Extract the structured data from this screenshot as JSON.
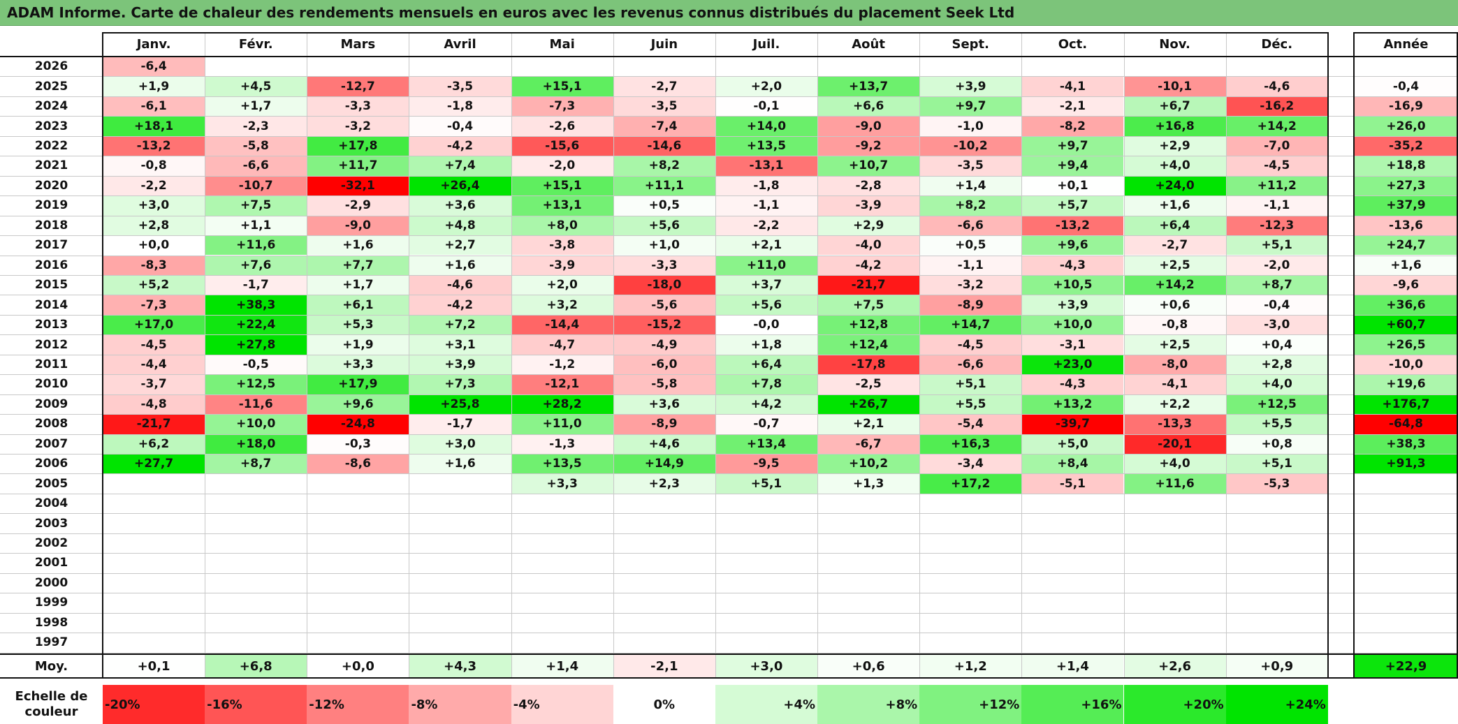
{
  "title": "ADAM Informe. Carte de chaleur des rendements mensuels en euros avec les revenus connus distribués du placement Seek Ltd",
  "colors": {
    "title_bg": "#7cc47a",
    "neg_max": "#ff0000",
    "zero": "#ffffff",
    "pos_max": "#00e000"
  },
  "chart_data": {
    "type": "heatmap",
    "columns": [
      "Janv.",
      "Févr.",
      "Mars",
      "Avril",
      "Mai",
      "Juin",
      "Juil.",
      "Août",
      "Sept.",
      "Oct.",
      "Nov.",
      "Déc."
    ],
    "year_column_label": "Année",
    "rows": [
      {
        "year": "2026",
        "months": [
          "-6,4",
          "",
          "",
          "",
          "",
          "",
          "",
          "",
          "",
          "",
          "",
          ""
        ],
        "annual": ""
      },
      {
        "year": "2025",
        "months": [
          "+1,9",
          "+4,5",
          "-12,7",
          "-3,5",
          "+15,1",
          "-2,7",
          "+2,0",
          "+13,7",
          "+3,9",
          "-4,1",
          "-10,1",
          "-4,6"
        ],
        "annual": "-0,4"
      },
      {
        "year": "2024",
        "months": [
          "-6,1",
          "+1,7",
          "-3,3",
          "-1,8",
          "-7,3",
          "-3,5",
          "-0,1",
          "+6,6",
          "+9,7",
          "-2,1",
          "+6,7",
          "-16,2"
        ],
        "annual": "-16,9"
      },
      {
        "year": "2023",
        "months": [
          "+18,1",
          "-2,3",
          "-3,2",
          "-0,4",
          "-2,6",
          "-7,4",
          "+14,0",
          "-9,0",
          "-1,0",
          "-8,2",
          "+16,8",
          "+14,2"
        ],
        "annual": "+26,0"
      },
      {
        "year": "2022",
        "months": [
          "-13,2",
          "-5,8",
          "+17,8",
          "-4,2",
          "-15,6",
          "-14,6",
          "+13,5",
          "-9,2",
          "-10,2",
          "+9,7",
          "+2,9",
          "-7,0"
        ],
        "annual": "-35,2"
      },
      {
        "year": "2021",
        "months": [
          "-0,8",
          "-6,6",
          "+11,7",
          "+7,4",
          "-2,0",
          "+8,2",
          "-13,1",
          "+10,7",
          "-3,5",
          "+9,4",
          "+4,0",
          "-4,5"
        ],
        "annual": "+18,8"
      },
      {
        "year": "2020",
        "months": [
          "-2,2",
          "-10,7",
          "-32,1",
          "+26,4",
          "+15,1",
          "+11,1",
          "-1,8",
          "-2,8",
          "+1,4",
          "+0,1",
          "+24,0",
          "+11,2"
        ],
        "annual": "+27,3"
      },
      {
        "year": "2019",
        "months": [
          "+3,0",
          "+7,5",
          "-2,9",
          "+3,6",
          "+13,1",
          "+0,5",
          "-1,1",
          "-3,9",
          "+8,2",
          "+5,7",
          "+1,6",
          "-1,1"
        ],
        "annual": "+37,9"
      },
      {
        "year": "2018",
        "months": [
          "+2,8",
          "+1,1",
          "-9,0",
          "+4,8",
          "+8,0",
          "+5,6",
          "-2,2",
          "+2,9",
          "-6,6",
          "-13,2",
          "+6,4",
          "-12,3"
        ],
        "annual": "-13,6"
      },
      {
        "year": "2017",
        "months": [
          "+0,0",
          "+11,6",
          "+1,6",
          "+2,7",
          "-3,8",
          "+1,0",
          "+2,1",
          "-4,0",
          "+0,5",
          "+9,6",
          "-2,7",
          "+5,1"
        ],
        "annual": "+24,7"
      },
      {
        "year": "2016",
        "months": [
          "-8,3",
          "+7,6",
          "+7,7",
          "+1,6",
          "-3,9",
          "-3,3",
          "+11,0",
          "-4,2",
          "-1,1",
          "-4,3",
          "+2,5",
          "-2,0"
        ],
        "annual": "+1,6"
      },
      {
        "year": "2015",
        "months": [
          "+5,2",
          "-1,7",
          "+1,7",
          "-4,6",
          "+2,0",
          "-18,0",
          "+3,7",
          "-21,7",
          "-3,2",
          "+10,5",
          "+14,2",
          "+8,7"
        ],
        "annual": "-9,6"
      },
      {
        "year": "2014",
        "months": [
          "-7,3",
          "+38,3",
          "+6,1",
          "-4,2",
          "+3,2",
          "-5,6",
          "+5,6",
          "+7,5",
          "-8,9",
          "+3,9",
          "+0,6",
          "-0,4"
        ],
        "annual": "+36,6"
      },
      {
        "year": "2013",
        "months": [
          "+17,0",
          "+22,4",
          "+5,3",
          "+7,2",
          "-14,4",
          "-15,2",
          "-0,0",
          "+12,8",
          "+14,7",
          "+10,0",
          "-0,8",
          "-3,0"
        ],
        "annual": "+60,7"
      },
      {
        "year": "2012",
        "months": [
          "-4,5",
          "+27,8",
          "+1,9",
          "+3,1",
          "-4,7",
          "-4,9",
          "+1,8",
          "+12,4",
          "-4,5",
          "-3,1",
          "+2,5",
          "+0,4"
        ],
        "annual": "+26,5"
      },
      {
        "year": "2011",
        "months": [
          "-4,4",
          "-0,5",
          "+3,3",
          "+3,9",
          "-1,2",
          "-6,0",
          "+6,4",
          "-17,8",
          "-6,6",
          "+23,0",
          "-8,0",
          "+2,8"
        ],
        "annual": "-10,0"
      },
      {
        "year": "2010",
        "months": [
          "-3,7",
          "+12,5",
          "+17,9",
          "+7,3",
          "-12,1",
          "-5,8",
          "+7,8",
          "-2,5",
          "+5,1",
          "-4,3",
          "-4,1",
          "+4,0"
        ],
        "annual": "+19,6"
      },
      {
        "year": "2009",
        "months": [
          "-4,8",
          "-11,6",
          "+9,6",
          "+25,8",
          "+28,2",
          "+3,6",
          "+4,2",
          "+26,7",
          "+5,5",
          "+13,2",
          "+2,2",
          "+12,5"
        ],
        "annual": "+176,7"
      },
      {
        "year": "2008",
        "months": [
          "-21,7",
          "+10,0",
          "-24,8",
          "-1,7",
          "+11,0",
          "-8,9",
          "-0,7",
          "+2,1",
          "-5,4",
          "-39,7",
          "-13,3",
          "+5,5"
        ],
        "annual": "-64,8"
      },
      {
        "year": "2007",
        "months": [
          "+6,2",
          "+18,0",
          "-0,3",
          "+3,0",
          "-1,3",
          "+4,6",
          "+13,4",
          "-6,7",
          "+16,3",
          "+5,0",
          "-20,1",
          "+0,8"
        ],
        "annual": "+38,3"
      },
      {
        "year": "2006",
        "months": [
          "+27,7",
          "+8,7",
          "-8,6",
          "+1,6",
          "+13,5",
          "+14,9",
          "-9,5",
          "+10,2",
          "-3,4",
          "+8,4",
          "+4,0",
          "+5,1"
        ],
        "annual": "+91,3"
      },
      {
        "year": "2005",
        "months": [
          "",
          "",
          "",
          "",
          "+3,3",
          "+2,3",
          "+5,1",
          "+1,3",
          "+17,2",
          "-5,1",
          "+11,6",
          "-5,3"
        ],
        "annual": ""
      },
      {
        "year": "2004",
        "months": [
          "",
          "",
          "",
          "",
          "",
          "",
          "",
          "",
          "",
          "",
          "",
          ""
        ],
        "annual": ""
      },
      {
        "year": "2003",
        "months": [
          "",
          "",
          "",
          "",
          "",
          "",
          "",
          "",
          "",
          "",
          "",
          ""
        ],
        "annual": ""
      },
      {
        "year": "2002",
        "months": [
          "",
          "",
          "",
          "",
          "",
          "",
          "",
          "",
          "",
          "",
          "",
          ""
        ],
        "annual": ""
      },
      {
        "year": "2001",
        "months": [
          "",
          "",
          "",
          "",
          "",
          "",
          "",
          "",
          "",
          "",
          "",
          ""
        ],
        "annual": ""
      },
      {
        "year": "2000",
        "months": [
          "",
          "",
          "",
          "",
          "",
          "",
          "",
          "",
          "",
          "",
          "",
          ""
        ],
        "annual": ""
      },
      {
        "year": "1999",
        "months": [
          "",
          "",
          "",
          "",
          "",
          "",
          "",
          "",
          "",
          "",
          "",
          ""
        ],
        "annual": ""
      },
      {
        "year": "1998",
        "months": [
          "",
          "",
          "",
          "",
          "",
          "",
          "",
          "",
          "",
          "",
          "",
          ""
        ],
        "annual": ""
      },
      {
        "year": "1997",
        "months": [
          "",
          "",
          "",
          "",
          "",
          "",
          "",
          "",
          "",
          "",
          "",
          ""
        ],
        "annual": ""
      }
    ],
    "average": {
      "label": "Moy.",
      "months": [
        "+0,1",
        "+6,8",
        "+0,0",
        "+4,3",
        "+1,4",
        "-2,1",
        "+3,0",
        "+0,6",
        "+1,2",
        "+1,4",
        "+2,6",
        "+0,9"
      ],
      "annual": "+22,9"
    },
    "scale": {
      "label_line1": "Echelle de",
      "label_line2": "couleur",
      "labels": [
        "-20%",
        "-16%",
        "-12%",
        "-8%",
        "-4%",
        "0%",
        "+4%",
        "+8%",
        "+12%",
        "+16%",
        "+20%",
        "+24%"
      ],
      "values": [
        -20,
        -16,
        -12,
        -8,
        -4,
        0,
        4,
        8,
        12,
        16,
        20,
        24
      ]
    },
    "color_range": [
      -24,
      24
    ]
  }
}
